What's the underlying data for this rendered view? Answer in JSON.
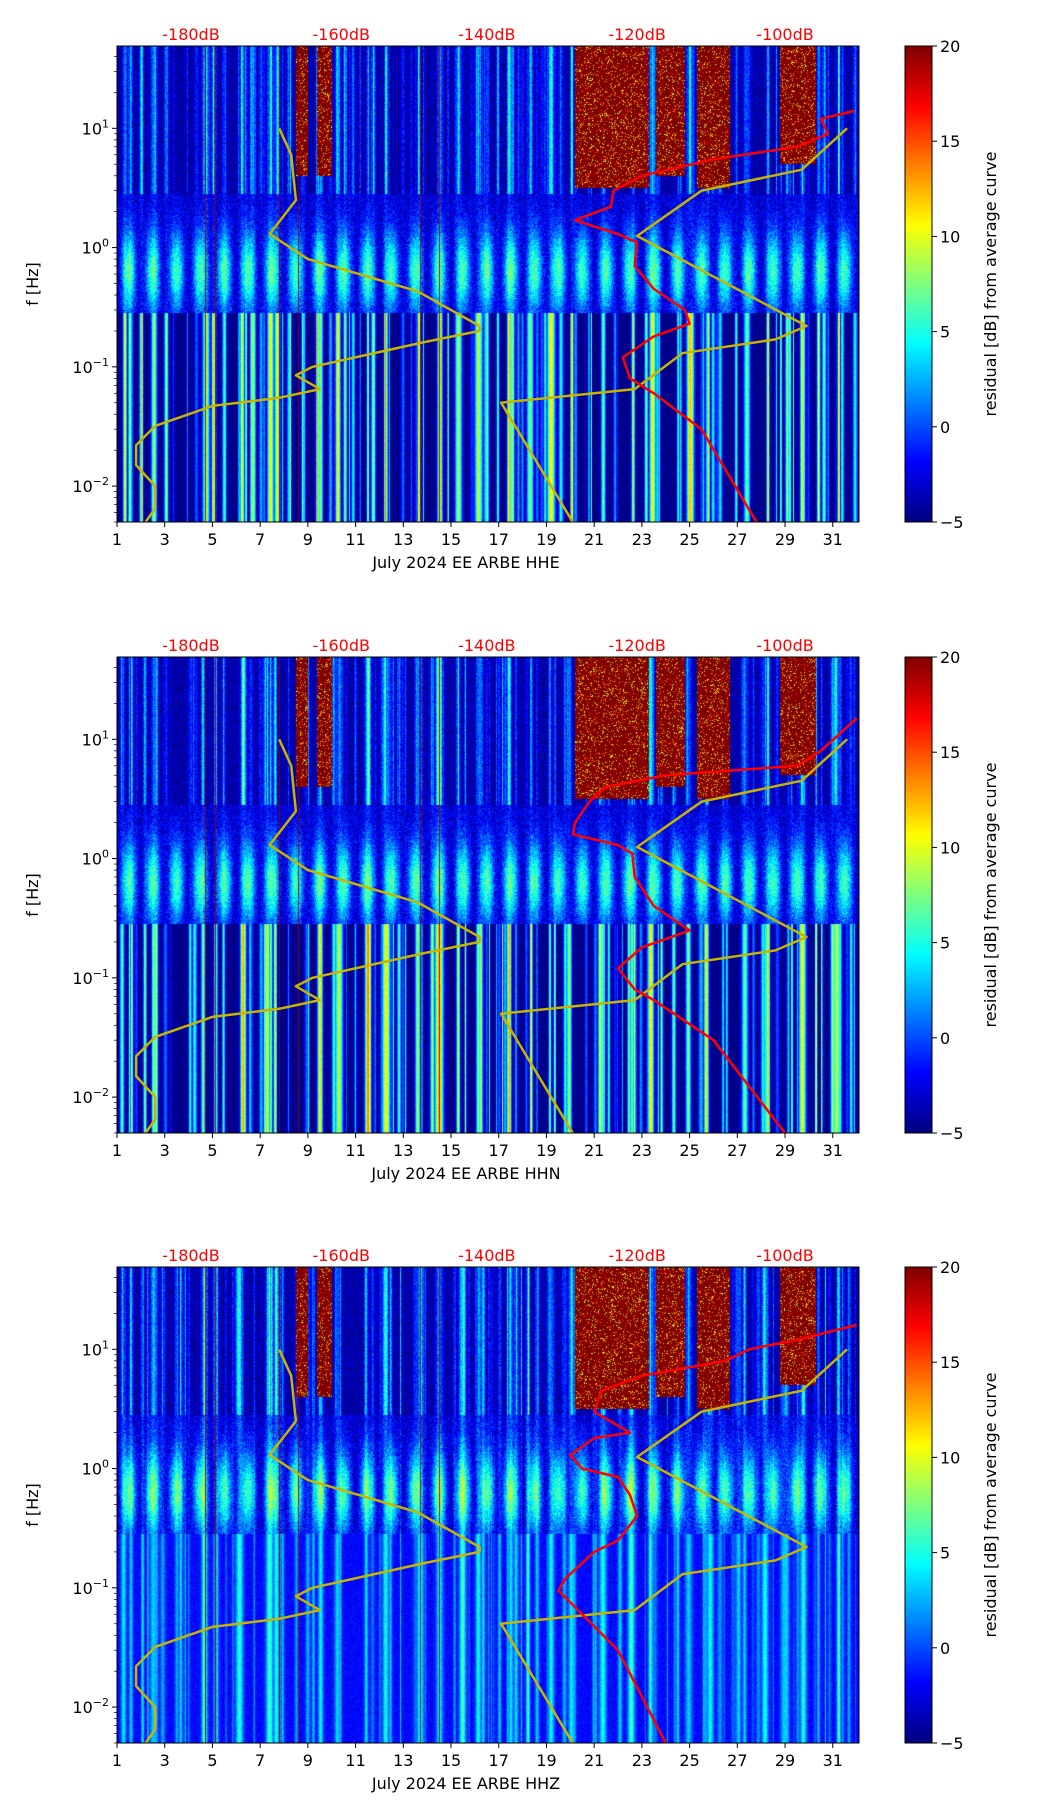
{
  "chart_data": [
    {
      "type": "heatmap",
      "xlabel": "July 2024 EE ARBE  HHE",
      "ylabel": "f [Hz]",
      "xlim": [
        1,
        32.1
      ],
      "ylim": [
        0.005,
        49
      ],
      "yscale": "log",
      "xticks": [
        "1",
        "3",
        "5",
        "7",
        "9",
        "11",
        "13",
        "15",
        "17",
        "19",
        "21",
        "23",
        "25",
        "27",
        "29",
        "31"
      ],
      "yticks": [
        {
          "base": "10",
          "exp": "1",
          "value": 10
        },
        {
          "base": "10",
          "exp": "0",
          "value": 1
        },
        {
          "base": "10",
          "exp": "−1",
          "value": 0.1
        },
        {
          "base": "10",
          "exp": "−2",
          "value": 0.01
        }
      ],
      "top_labels": [
        {
          "text": "-180dB",
          "day": 4.1
        },
        {
          "text": "-160dB",
          "day": 10.4
        },
        {
          "text": "-140dB",
          "day": 16.5
        },
        {
          "text": "-120dB",
          "day": 22.8
        },
        {
          "text": "-100dB",
          "day": 29.0
        }
      ],
      "colorbar": {
        "label": "residual [dB] from average curve",
        "min": -5,
        "max": 20,
        "ticks": [
          "20",
          "15",
          "10",
          "5",
          "0",
          "−5"
        ],
        "colormap": "jet"
      },
      "series": [
        {
          "name": "yellow-curve-low",
          "color": "#c8b400",
          "points": [
            [
              7.8,
              10
            ],
            [
              8.3,
              6
            ],
            [
              8.5,
              2.5
            ],
            [
              7.4,
              1.3
            ],
            [
              9,
              0.8
            ],
            [
              13.6,
              0.43
            ],
            [
              16.2,
              0.22
            ],
            [
              16.2,
              0.2
            ],
            [
              13.8,
              0.16
            ],
            [
              9.2,
              0.1
            ],
            [
              8.5,
              0.085
            ],
            [
              9.5,
              0.065
            ],
            [
              7.8,
              0.055
            ],
            [
              5,
              0.047
            ],
            [
              2.6,
              0.032
            ],
            [
              1.8,
              0.022
            ],
            [
              1.8,
              0.015
            ],
            [
              2.6,
              0.01
            ],
            [
              2.6,
              0.0065
            ],
            [
              2.2,
              0.005
            ]
          ]
        },
        {
          "name": "yellow-curve-high",
          "color": "#c8b400",
          "points": [
            [
              31.6,
              10
            ],
            [
              29.7,
              4.5
            ],
            [
              25.5,
              3
            ],
            [
              22.8,
              1.25
            ],
            [
              29.9,
              0.22
            ],
            [
              28.6,
              0.17
            ],
            [
              24.7,
              0.13
            ],
            [
              22.7,
              0.065
            ],
            [
              17.1,
              0.05
            ],
            [
              20.1,
              0.005
            ]
          ]
        },
        {
          "name": "red-curve",
          "color": "#ff0000",
          "points": [
            [
              31.9,
              14
            ],
            [
              30.5,
              12
            ],
            [
              30.8,
              9
            ],
            [
              29.5,
              7
            ],
            [
              26,
              5.5
            ],
            [
              23,
              4
            ],
            [
              21.8,
              3
            ],
            [
              21.7,
              2.2
            ],
            [
              20.2,
              1.7
            ],
            [
              21,
              1.5
            ],
            [
              22,
              1.3
            ],
            [
              22.8,
              1.1
            ],
            [
              22.7,
              0.7
            ],
            [
              23.5,
              0.45
            ],
            [
              24.8,
              0.3
            ],
            [
              25,
              0.23
            ],
            [
              23.5,
              0.18
            ],
            [
              22.2,
              0.12
            ],
            [
              22.5,
              0.08
            ],
            [
              23.5,
              0.06
            ],
            [
              25.5,
              0.03
            ],
            [
              27.8,
              0.005
            ]
          ]
        }
      ]
    },
    {
      "type": "heatmap",
      "xlabel": "July 2024 EE ARBE  HHN",
      "ylabel": "f [Hz]",
      "xlim": [
        1,
        32.1
      ],
      "ylim": [
        0.005,
        49
      ],
      "yscale": "log",
      "xticks": [
        "1",
        "3",
        "5",
        "7",
        "9",
        "11",
        "13",
        "15",
        "17",
        "19",
        "21",
        "23",
        "25",
        "27",
        "29",
        "31"
      ],
      "yticks": [
        {
          "base": "10",
          "exp": "1",
          "value": 10
        },
        {
          "base": "10",
          "exp": "0",
          "value": 1
        },
        {
          "base": "10",
          "exp": "−1",
          "value": 0.1
        },
        {
          "base": "10",
          "exp": "−2",
          "value": 0.01
        }
      ],
      "top_labels": [
        {
          "text": "-180dB",
          "day": 4.1
        },
        {
          "text": "-160dB",
          "day": 10.4
        },
        {
          "text": "-140dB",
          "day": 16.5
        },
        {
          "text": "-120dB",
          "day": 22.8
        },
        {
          "text": "-100dB",
          "day": 29.0
        }
      ],
      "colorbar": {
        "label": "residual [dB] from average curve",
        "min": -5,
        "max": 20,
        "ticks": [
          "20",
          "15",
          "10",
          "5",
          "0",
          "−5"
        ],
        "colormap": "jet"
      },
      "series": [
        {
          "name": "yellow-curve-low",
          "color": "#c8b400",
          "points": [
            [
              7.8,
              10
            ],
            [
              8.3,
              6
            ],
            [
              8.5,
              2.5
            ],
            [
              7.4,
              1.3
            ],
            [
              9,
              0.8
            ],
            [
              13.6,
              0.43
            ],
            [
              16.2,
              0.22
            ],
            [
              16.2,
              0.2
            ],
            [
              13.8,
              0.16
            ],
            [
              9.2,
              0.1
            ],
            [
              8.5,
              0.085
            ],
            [
              9.5,
              0.065
            ],
            [
              7.8,
              0.055
            ],
            [
              5,
              0.047
            ],
            [
              2.6,
              0.032
            ],
            [
              1.8,
              0.022
            ],
            [
              1.8,
              0.015
            ],
            [
              2.6,
              0.01
            ],
            [
              2.6,
              0.0065
            ],
            [
              2.2,
              0.005
            ]
          ]
        },
        {
          "name": "yellow-curve-high",
          "color": "#c8b400",
          "points": [
            [
              31.6,
              10
            ],
            [
              29.7,
              4.5
            ],
            [
              25.5,
              3
            ],
            [
              22.8,
              1.25
            ],
            [
              29.9,
              0.22
            ],
            [
              28.6,
              0.17
            ],
            [
              24.7,
              0.13
            ],
            [
              22.7,
              0.065
            ],
            [
              17.1,
              0.05
            ],
            [
              20.1,
              0.005
            ]
          ]
        },
        {
          "name": "red-curve",
          "color": "#ff0000",
          "points": [
            [
              32,
              15
            ],
            [
              30.5,
              8
            ],
            [
              29.5,
              6
            ],
            [
              24,
              5
            ],
            [
              21.5,
              4
            ],
            [
              20.8,
              3
            ],
            [
              20.2,
              2
            ],
            [
              20.1,
              1.6
            ],
            [
              22,
              1.3
            ],
            [
              22.6,
              1.1
            ],
            [
              22.7,
              0.7
            ],
            [
              23.5,
              0.4
            ],
            [
              25,
              0.25
            ],
            [
              23,
              0.18
            ],
            [
              22,
              0.12
            ],
            [
              22.7,
              0.08
            ],
            [
              23.5,
              0.065
            ],
            [
              26,
              0.03
            ],
            [
              29,
              0.005
            ]
          ]
        }
      ]
    },
    {
      "type": "heatmap",
      "xlabel": "July 2024 EE ARBE  HHZ",
      "ylabel": "f [Hz]",
      "xlim": [
        1,
        32.1
      ],
      "ylim": [
        0.005,
        49
      ],
      "yscale": "log",
      "xticks": [
        "1",
        "3",
        "5",
        "7",
        "9",
        "11",
        "13",
        "15",
        "17",
        "19",
        "21",
        "23",
        "25",
        "27",
        "29",
        "31"
      ],
      "yticks": [
        {
          "base": "10",
          "exp": "1",
          "value": 10
        },
        {
          "base": "10",
          "exp": "0",
          "value": 1
        },
        {
          "base": "10",
          "exp": "−1",
          "value": 0.1
        },
        {
          "base": "10",
          "exp": "−2",
          "value": 0.01
        }
      ],
      "top_labels": [
        {
          "text": "-180dB",
          "day": 4.1
        },
        {
          "text": "-160dB",
          "day": 10.4
        },
        {
          "text": "-140dB",
          "day": 16.5
        },
        {
          "text": "-120dB",
          "day": 22.8
        },
        {
          "text": "-100dB",
          "day": 29.0
        }
      ],
      "colorbar": {
        "label": "residual [dB] from average curve",
        "min": -5,
        "max": 20,
        "ticks": [
          "20",
          "15",
          "10",
          "5",
          "0",
          "−5"
        ],
        "colormap": "jet"
      },
      "series": [
        {
          "name": "yellow-curve-low",
          "color": "#c8b400",
          "points": [
            [
              7.8,
              10
            ],
            [
              8.3,
              6
            ],
            [
              8.5,
              2.5
            ],
            [
              7.4,
              1.3
            ],
            [
              9,
              0.8
            ],
            [
              13.6,
              0.43
            ],
            [
              16.2,
              0.22
            ],
            [
              16.2,
              0.2
            ],
            [
              13.8,
              0.16
            ],
            [
              9.2,
              0.1
            ],
            [
              8.5,
              0.085
            ],
            [
              9.5,
              0.065
            ],
            [
              7.8,
              0.055
            ],
            [
              5,
              0.047
            ],
            [
              2.6,
              0.032
            ],
            [
              1.8,
              0.022
            ],
            [
              1.8,
              0.015
            ],
            [
              2.6,
              0.01
            ],
            [
              2.6,
              0.0065
            ],
            [
              2.2,
              0.005
            ]
          ]
        },
        {
          "name": "yellow-curve-high",
          "color": "#c8b400",
          "points": [
            [
              31.6,
              10
            ],
            [
              29.7,
              4.5
            ],
            [
              25.5,
              3
            ],
            [
              22.8,
              1.25
            ],
            [
              29.9,
              0.22
            ],
            [
              28.6,
              0.17
            ],
            [
              24.7,
              0.13
            ],
            [
              22.7,
              0.065
            ],
            [
              17.1,
              0.05
            ],
            [
              20.1,
              0.005
            ]
          ]
        },
        {
          "name": "red-curve",
          "color": "#ff0000",
          "points": [
            [
              32,
              16
            ],
            [
              29.5,
              12
            ],
            [
              27.5,
              10
            ],
            [
              26.5,
              8
            ],
            [
              23,
              6
            ],
            [
              21.3,
              4.5
            ],
            [
              21,
              3
            ],
            [
              22.5,
              2
            ],
            [
              21,
              1.8
            ],
            [
              20,
              1.3
            ],
            [
              20.5,
              1
            ],
            [
              22,
              0.85
            ],
            [
              22.5,
              0.6
            ],
            [
              22.8,
              0.4
            ],
            [
              22,
              0.25
            ],
            [
              21,
              0.2
            ],
            [
              19.8,
              0.12
            ],
            [
              19.5,
              0.095
            ],
            [
              20.5,
              0.06
            ],
            [
              22,
              0.03
            ],
            [
              24,
              0.005
            ]
          ]
        }
      ]
    }
  ]
}
